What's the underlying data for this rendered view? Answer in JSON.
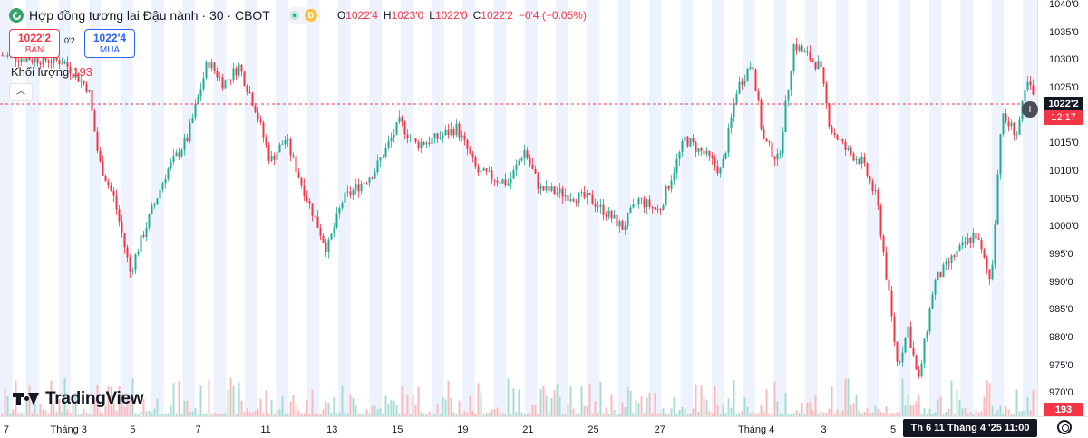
{
  "header": {
    "symbol_title": "Hợp đồng tương lai Đậu nành · 30 · CBOT",
    "status_d": "D",
    "ohlc": [
      {
        "key": "O",
        "value": "1022'4"
      },
      {
        "key": "H",
        "value": "1023'0"
      },
      {
        "key": "L",
        "value": "1022'0"
      },
      {
        "key": "C",
        "value": "1022'2"
      },
      {
        "key": "",
        "value": "−0'4 (−0.05%)"
      }
    ]
  },
  "trade": {
    "sell_price": "1022'2",
    "sell_label": "BÁN",
    "spread": "0'2",
    "buy_price": "1022'4",
    "buy_label": "MUA"
  },
  "volume": {
    "label": "Khối lượng",
    "value": "193"
  },
  "logo": {
    "text": "TradingView"
  },
  "price_scale": {
    "current_price": "1022'2",
    "countdown": "12:17",
    "volume_tag": "193"
  },
  "time_scale": {
    "crosshair_label": "Th 6 11 Tháng 4 '25   11:00"
  },
  "colors": {
    "up": "#22ab94",
    "down": "#f23645",
    "session_band": "#eef2fd",
    "volume_up": "#a8dcd2",
    "volume_down": "#f9b9bd"
  },
  "chart_data": {
    "type": "candlestick",
    "title": "Hợp đồng tương lai Đậu nành · 30 · CBOT",
    "ylim": [
      966,
      1041
    ],
    "y_ticks": [
      "1040'0",
      "1035'0",
      "1030'0",
      "1025'0",
      "1020'0",
      "1015'0",
      "1010'0",
      "1005'0",
      "1000'0",
      "995'0",
      "990'0",
      "985'0",
      "980'0",
      "975'0",
      "970'0"
    ],
    "y_tick_values": [
      1040,
      1035,
      1030,
      1025,
      1020,
      1015,
      1010,
      1005,
      1000,
      995,
      990,
      985,
      980,
      975,
      970
    ],
    "x_ticks": [
      "7",
      "Tháng 3",
      "5",
      "7",
      "11",
      "13",
      "15",
      "19",
      "21",
      "25",
      "27",
      "Tháng 4",
      "3",
      "5"
    ],
    "x_tick_positions": [
      0.006,
      0.066,
      0.128,
      0.191,
      0.256,
      0.32,
      0.383,
      0.446,
      0.509,
      0.572,
      0.636,
      0.729,
      0.794,
      0.861
    ],
    "last_price": 1022.25,
    "price_path": [
      {
        "x": 0.0,
        "y": 1031
      },
      {
        "x": 0.06,
        "y": 1030
      },
      {
        "x": 0.085,
        "y": 1025
      },
      {
        "x": 0.095,
        "y": 1012
      },
      {
        "x": 0.11,
        "y": 1005
      },
      {
        "x": 0.125,
        "y": 992
      },
      {
        "x": 0.14,
        "y": 1000
      },
      {
        "x": 0.16,
        "y": 1010
      },
      {
        "x": 0.18,
        "y": 1016
      },
      {
        "x": 0.2,
        "y": 1030
      },
      {
        "x": 0.215,
        "y": 1026
      },
      {
        "x": 0.23,
        "y": 1029
      },
      {
        "x": 0.245,
        "y": 1022
      },
      {
        "x": 0.26,
        "y": 1012
      },
      {
        "x": 0.275,
        "y": 1016
      },
      {
        "x": 0.29,
        "y": 1008
      },
      {
        "x": 0.315,
        "y": 996
      },
      {
        "x": 0.33,
        "y": 1005
      },
      {
        "x": 0.36,
        "y": 1010
      },
      {
        "x": 0.385,
        "y": 1019
      },
      {
        "x": 0.4,
        "y": 1015
      },
      {
        "x": 0.42,
        "y": 1016
      },
      {
        "x": 0.44,
        "y": 1018
      },
      {
        "x": 0.46,
        "y": 1010
      },
      {
        "x": 0.49,
        "y": 1008
      },
      {
        "x": 0.505,
        "y": 1014
      },
      {
        "x": 0.52,
        "y": 1007
      },
      {
        "x": 0.545,
        "y": 1006
      },
      {
        "x": 0.57,
        "y": 1005
      },
      {
        "x": 0.6,
        "y": 1000
      },
      {
        "x": 0.615,
        "y": 1005
      },
      {
        "x": 0.635,
        "y": 1003
      },
      {
        "x": 0.66,
        "y": 1016
      },
      {
        "x": 0.68,
        "y": 1013
      },
      {
        "x": 0.695,
        "y": 1010
      },
      {
        "x": 0.71,
        "y": 1025
      },
      {
        "x": 0.725,
        "y": 1030
      },
      {
        "x": 0.735,
        "y": 1016
      },
      {
        "x": 0.75,
        "y": 1012
      },
      {
        "x": 0.765,
        "y": 1033
      },
      {
        "x": 0.79,
        "y": 1029
      },
      {
        "x": 0.8,
        "y": 1018
      },
      {
        "x": 0.815,
        "y": 1014
      },
      {
        "x": 0.83,
        "y": 1012
      },
      {
        "x": 0.845,
        "y": 1005
      },
      {
        "x": 0.855,
        "y": 990
      },
      {
        "x": 0.865,
        "y": 975
      },
      {
        "x": 0.875,
        "y": 982
      },
      {
        "x": 0.885,
        "y": 972
      },
      {
        "x": 0.9,
        "y": 990
      },
      {
        "x": 0.92,
        "y": 995
      },
      {
        "x": 0.94,
        "y": 999
      },
      {
        "x": 0.955,
        "y": 990
      },
      {
        "x": 0.965,
        "y": 1020
      },
      {
        "x": 0.98,
        "y": 1017
      },
      {
        "x": 0.99,
        "y": 1026
      },
      {
        "x": 1.0,
        "y": 1022
      }
    ],
    "session_bands": [
      [
        0.0,
        0.012
      ],
      [
        0.025,
        0.038
      ],
      [
        0.057,
        0.068
      ],
      [
        0.086,
        0.097
      ],
      [
        0.116,
        0.128
      ],
      [
        0.146,
        0.158
      ],
      [
        0.176,
        0.188
      ],
      [
        0.206,
        0.218
      ],
      [
        0.236,
        0.248
      ],
      [
        0.266,
        0.278
      ],
      [
        0.296,
        0.308
      ],
      [
        0.326,
        0.338
      ],
      [
        0.356,
        0.368
      ],
      [
        0.386,
        0.398
      ],
      [
        0.416,
        0.428
      ],
      [
        0.446,
        0.458
      ],
      [
        0.476,
        0.488
      ],
      [
        0.506,
        0.518
      ],
      [
        0.536,
        0.548
      ],
      [
        0.566,
        0.578
      ],
      [
        0.596,
        0.608
      ],
      [
        0.626,
        0.638
      ],
      [
        0.656,
        0.668
      ],
      [
        0.686,
        0.698
      ],
      [
        0.716,
        0.728
      ],
      [
        0.746,
        0.758
      ],
      [
        0.776,
        0.788
      ],
      [
        0.806,
        0.818
      ],
      [
        0.836,
        0.848
      ],
      [
        0.866,
        0.878
      ],
      [
        0.896,
        0.908
      ],
      [
        0.926,
        0.938
      ],
      [
        0.956,
        0.968
      ],
      [
        0.986,
        1.0
      ]
    ]
  }
}
